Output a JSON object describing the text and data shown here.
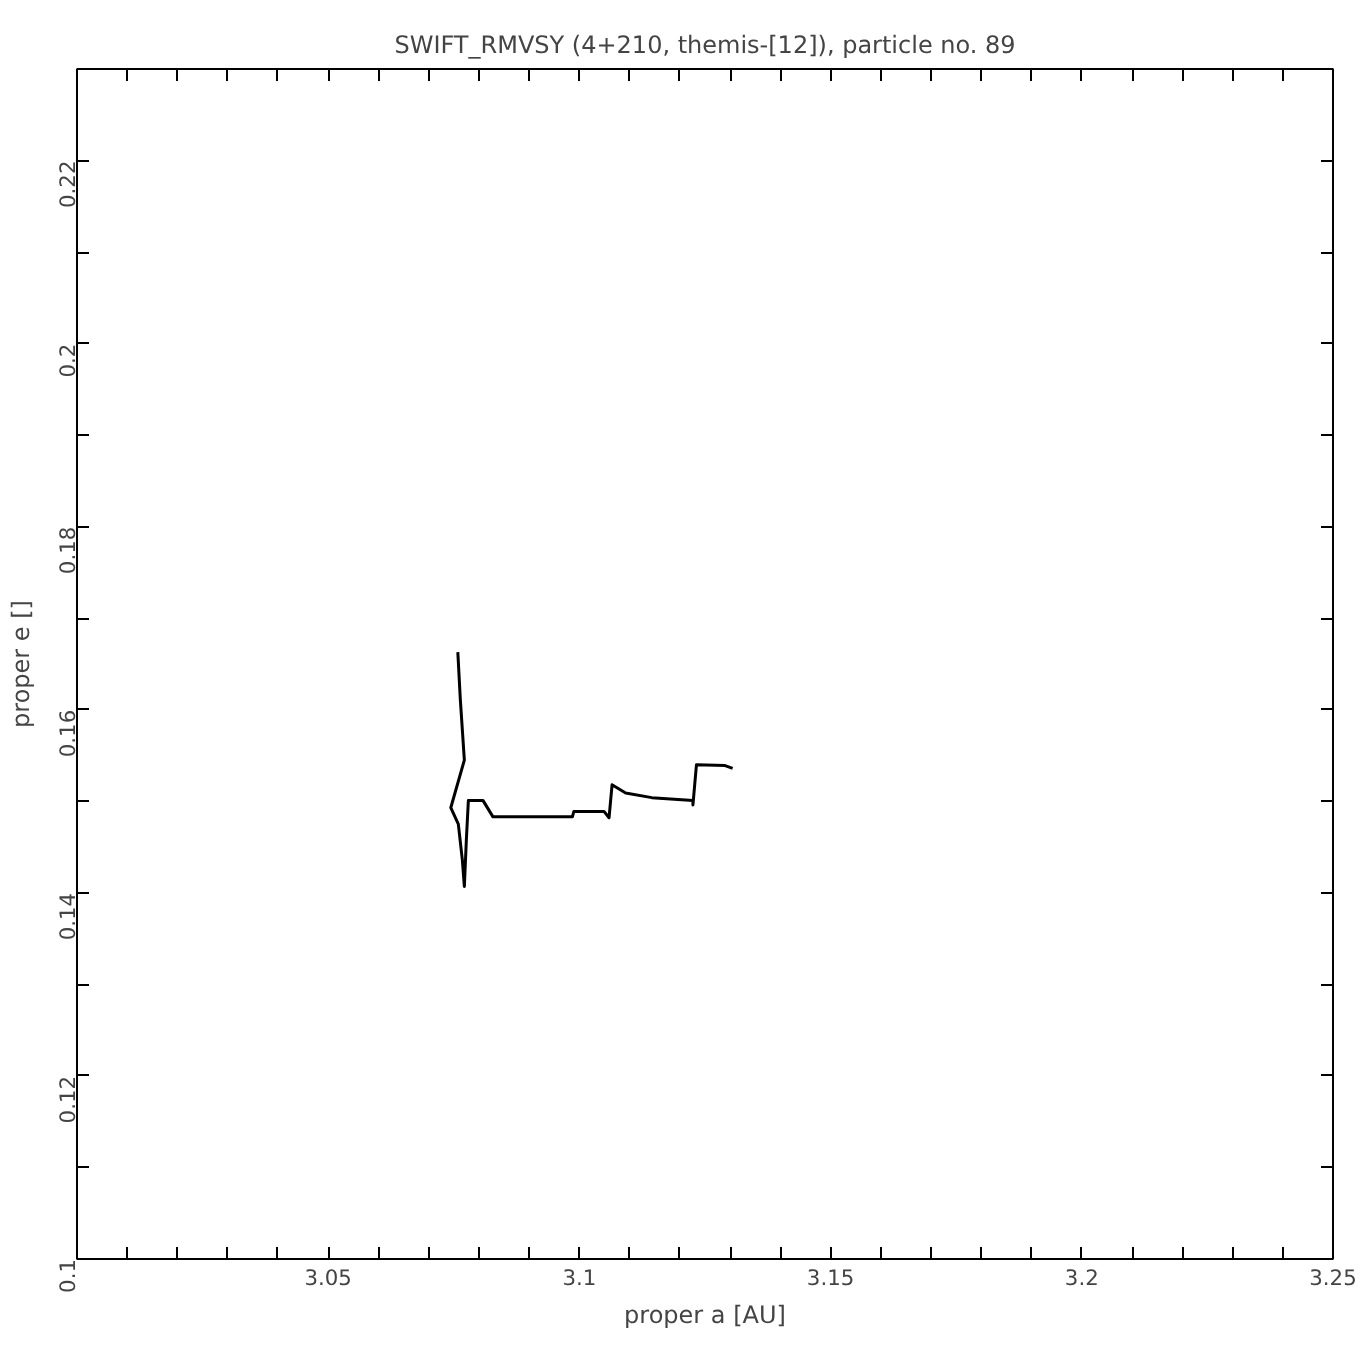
{
  "chart_data": {
    "type": "line",
    "title": "SWIFT_RMVSY (4+210, themis-[12]), particle no. 89",
    "xlabel": "proper a [AU]",
    "ylabel": "proper e []",
    "x": [
      3.0758,
      3.0763,
      3.0771,
      3.0744,
      3.0759,
      3.0767,
      3.0771,
      3.0775,
      3.0779,
      3.0808,
      3.0828,
      3.0986,
      3.0989,
      3.1049,
      3.1059,
      3.1065,
      3.1092,
      3.1144,
      3.1226,
      3.1226,
      3.1233,
      3.129,
      3.1305
    ],
    "series": [
      {
        "color": "#000000",
        "values": [
          0.1663,
          0.1611,
          0.1545,
          0.1493,
          0.1475,
          0.1436,
          0.1407,
          0.1458,
          0.1501,
          0.1501,
          0.1483,
          0.1483,
          0.1489,
          0.1489,
          0.1482,
          0.1518,
          0.1509,
          0.1504,
          0.1501,
          0.1496,
          0.154,
          0.1539,
          0.1536
        ]
      }
    ],
    "xlim": [
      3.0,
      3.25
    ],
    "ylim": [
      0.1,
      0.23
    ],
    "xticks": [
      {
        "value": 3.0,
        "label": null
      },
      {
        "value": 3.01,
        "label": null
      },
      {
        "value": 3.02,
        "label": null
      },
      {
        "value": 3.03,
        "label": null
      },
      {
        "value": 3.04,
        "label": null
      },
      3.05,
      {
        "value": 3.06,
        "label": null
      },
      {
        "value": 3.07,
        "label": null
      },
      {
        "value": 3.08,
        "label": null
      },
      {
        "value": 3.09,
        "label": null
      },
      3.1,
      {
        "value": 3.11,
        "label": null
      },
      {
        "value": 3.12,
        "label": null
      },
      {
        "value": 3.13,
        "label": null
      },
      {
        "value": 3.14,
        "label": null
      },
      3.15,
      {
        "value": 3.16,
        "label": null
      },
      {
        "value": 3.17,
        "label": null
      },
      {
        "value": 3.18,
        "label": null
      },
      {
        "value": 3.19,
        "label": null
      },
      3.2,
      {
        "value": 3.21,
        "label": null
      },
      {
        "value": 3.22,
        "label": null
      },
      {
        "value": 3.23,
        "label": null
      },
      {
        "value": 3.24,
        "label": null
      },
      3.25
    ],
    "yticks": [
      0.1,
      {
        "value": 0.11,
        "label": null
      },
      0.12,
      {
        "value": 0.13,
        "label": null
      },
      0.14,
      {
        "value": 0.15,
        "label": null
      },
      0.16,
      {
        "value": 0.17,
        "label": null
      },
      0.18,
      {
        "value": 0.19,
        "label": null
      },
      0.2,
      {
        "value": 0.21,
        "label": null
      },
      0.22
    ],
    "grid": false,
    "marker": "none",
    "line_style": "solid"
  }
}
